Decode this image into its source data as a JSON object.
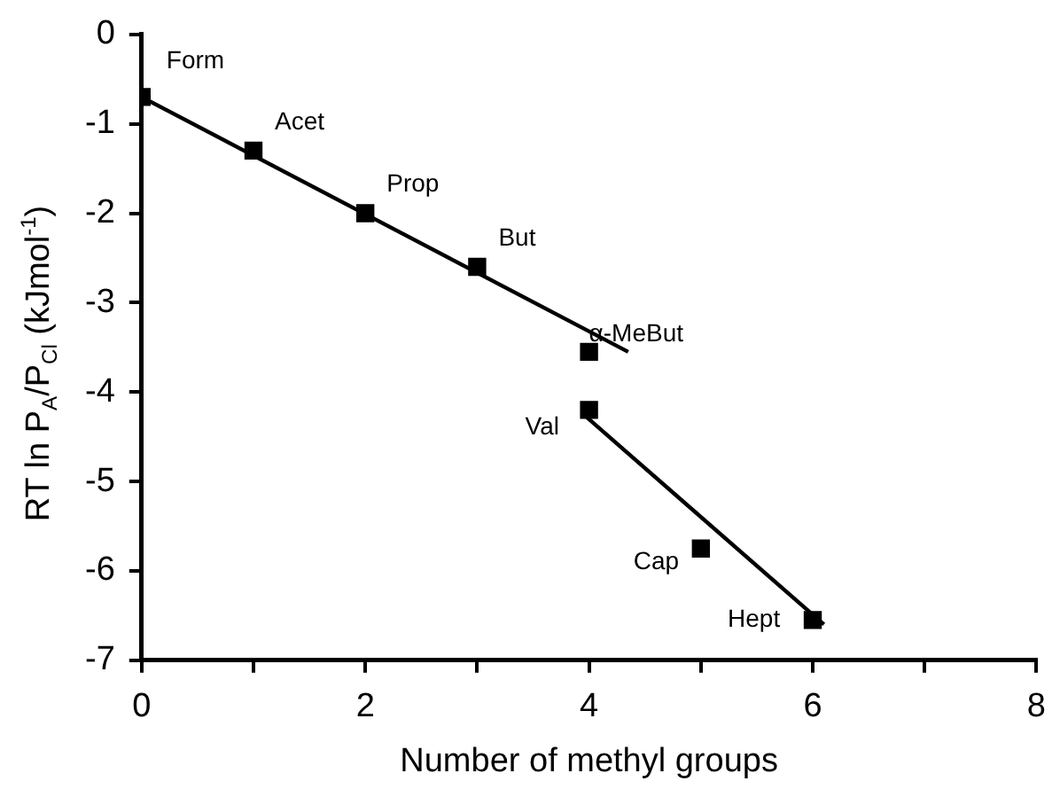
{
  "chart_data": {
    "type": "scatter",
    "xlabel": "Number of methyl groups",
    "ylabel": "RT ln P$_{A}$/P$_{Cl}$ (kJmol$^{-1}$)",
    "xlim": [
      0,
      8
    ],
    "ylim": [
      -7,
      0
    ],
    "xticks": [
      0,
      {
        "value": 1,
        "label": null
      },
      2,
      {
        "value": 3,
        "label": null
      },
      4,
      {
        "value": 5,
        "label": null
      },
      6,
      {
        "value": 7,
        "label": null
      },
      8
    ],
    "yticks": [
      0,
      -1,
      -2,
      -3,
      -4,
      -5,
      -6,
      -7
    ],
    "grid": false,
    "legend": false,
    "line_style": "solid",
    "series": [
      {
        "type": "scatter",
        "marker": "square",
        "color": "#000000",
        "x": [
          0,
          1,
          2,
          3,
          4,
          4,
          5,
          6
        ],
        "values": [
          -0.7,
          -1.3,
          -2.0,
          -2.6,
          -3.55,
          -4.2,
          -5.75,
          -6.55
        ]
      },
      {
        "type": "line",
        "marker": "none",
        "color": "#000000",
        "x": [
          0,
          4.35
        ],
        "values": [
          -0.7,
          -3.55
        ]
      },
      {
        "type": "line",
        "marker": "none",
        "color": "#000000",
        "x": [
          3.95,
          6.1
        ],
        "values": [
          -4.25,
          -6.6
        ]
      }
    ],
    "annotations": [
      {
        "text": "Form",
        "x": 0,
        "y": -0.7
      },
      {
        "text": "Acet",
        "x": 1,
        "y": -1.3
      },
      {
        "text": "Prop",
        "x": 2,
        "y": -2.0
      },
      {
        "text": "But",
        "x": 3,
        "y": -2.6
      },
      {
        "text": "α-MeBut",
        "x": 4,
        "y": -3.55
      },
      {
        "text": "Val",
        "x": 4,
        "y": -4.2
      },
      {
        "text": "Cap",
        "x": 5,
        "y": -5.75
      },
      {
        "text": "Hept",
        "x": 6,
        "y": -6.55
      }
    ]
  }
}
